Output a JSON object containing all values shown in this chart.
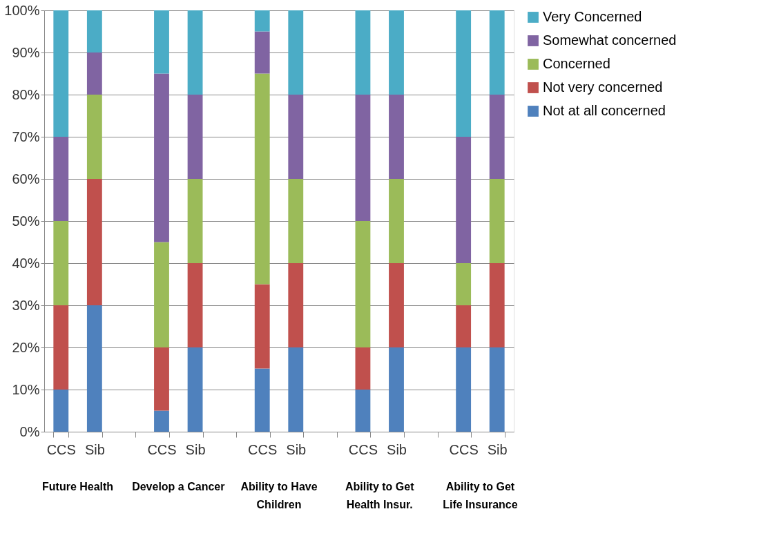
{
  "chart_data": {
    "type": "bar",
    "stacked": true,
    "grid": "y",
    "legend": "right",
    "categories": [
      "CCS",
      "Sib",
      null,
      "CCS",
      "Sib",
      null,
      "CCS",
      "Sib",
      null,
      "CCS",
      "Sib",
      null,
      "CCS",
      "Sib"
    ],
    "series": [
      {
        "name": "Not at all concerned",
        "color": "#4f81bd",
        "values": [
          10,
          30,
          null,
          5,
          20,
          null,
          15,
          20,
          null,
          10,
          20,
          null,
          20,
          20
        ]
      },
      {
        "name": "Not very concerned",
        "color": "#c0504d",
        "values": [
          20,
          30,
          null,
          15,
          20,
          null,
          20,
          20,
          null,
          10,
          20,
          null,
          10,
          20
        ]
      },
      {
        "name": "Concerned",
        "color": "#9bbb59",
        "values": [
          20,
          20,
          null,
          25,
          20,
          null,
          50,
          20,
          null,
          30,
          20,
          null,
          10,
          20
        ]
      },
      {
        "name": "Somewhat concerned",
        "color": "#8064a2",
        "values": [
          20,
          10,
          null,
          40,
          20,
          null,
          10,
          20,
          null,
          30,
          20,
          null,
          30,
          20
        ]
      },
      {
        "name": "Very Concerned",
        "color": "#4bacc6",
        "values": [
          30,
          10,
          null,
          15,
          20,
          null,
          5,
          20,
          null,
          20,
          20,
          null,
          30,
          20
        ]
      }
    ],
    "ylim": [
      0,
      100
    ],
    "yticks": [
      {
        "value": 0,
        "label": "0%"
      },
      {
        "value": 10,
        "label": "10%"
      },
      {
        "value": 20,
        "label": "20%"
      },
      {
        "value": 30,
        "label": "30%"
      },
      {
        "value": 40,
        "label": "40%"
      },
      {
        "value": 50,
        "label": "50%"
      },
      {
        "value": 60,
        "label": "60%"
      },
      {
        "value": 70,
        "label": "70%"
      },
      {
        "value": 80,
        "label": "80%"
      },
      {
        "value": 90,
        "label": "90%"
      },
      {
        "value": 100,
        "label": "100%"
      }
    ],
    "annotations": [
      "Future Health",
      "Develop a Cancer",
      "Ability to Have\nChildren",
      "Ability to Get\nHealth Insur.",
      "Ability to Get\n Life Insurance"
    ]
  }
}
